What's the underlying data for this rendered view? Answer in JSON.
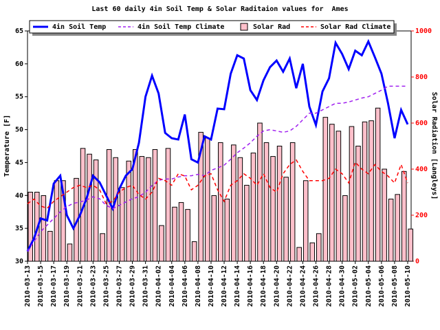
{
  "chart_data": {
    "type": "combo",
    "title": "Last 60 daily 4in Soil Temp & Solar Raditaion values for  Ames",
    "y_label": "Temperature [F]",
    "y2_label": "Solar Radiation [Langleys]",
    "categories": [
      "2010-03-13",
      null,
      "2010-03-15",
      null,
      "2010-03-17",
      null,
      "2010-03-19",
      null,
      "2010-03-21",
      null,
      "2010-03-23",
      null,
      "2010-03-25",
      null,
      "2010-03-27",
      null,
      "2010-03-29",
      null,
      "2010-03-31",
      null,
      "2010-04-02",
      null,
      "2010-04-04",
      null,
      "2010-04-06",
      null,
      "2010-04-08",
      null,
      "2010-04-10",
      null,
      "2010-04-12",
      null,
      "2010-04-14",
      null,
      "2010-04-16",
      null,
      "2010-04-18",
      null,
      "2010-04-20",
      null,
      "2010-04-22",
      null,
      "2010-04-24",
      null,
      "2010-04-26",
      null,
      "2010-04-28",
      null,
      "2010-04-30",
      null,
      "2010-05-02",
      null,
      "2010-05-04",
      null,
      "2010-05-06",
      null,
      "2010-05-08",
      null,
      "2010-05-10"
    ],
    "ylim": [
      30,
      65
    ],
    "yticks": [
      30,
      35,
      40,
      45,
      50,
      55,
      60,
      65
    ],
    "y2lim": [
      0,
      1000
    ],
    "y2ticks": [
      0,
      200,
      400,
      600,
      800,
      1000
    ],
    "y2_color": "#ff0000",
    "series": [
      {
        "name": "4in Soil Temp",
        "type": "line",
        "linestyle": "solid",
        "color": "#0000ff",
        "values": [
          31.5,
          33.5,
          36.5,
          36.2,
          41.8,
          43,
          37,
          35,
          37,
          39.5,
          43,
          42,
          40,
          38,
          41,
          43,
          44,
          48,
          55,
          58.2,
          55.5,
          49.5,
          48.7,
          48.5,
          52.3,
          45.5,
          45,
          49,
          48.5,
          53.2,
          53.1,
          58.5,
          61.3,
          60.8,
          56,
          54.5,
          57.5,
          59.5,
          60.5,
          58.8,
          60.8,
          56.3,
          60,
          53.5,
          50.7,
          55.8,
          57.8,
          63.2,
          61.5,
          59.2,
          62,
          61.3,
          63.4,
          61,
          58.5,
          54,
          48.7,
          53,
          50.8
        ]
      },
      {
        "name": "4in Soil Temp Climate",
        "type": "line",
        "linestyle": "dashed",
        "color": "#a020f0",
        "values": [
          31.5,
          33,
          34.5,
          35.5,
          36.5,
          37.5,
          38.3,
          38.8,
          39,
          39.3,
          39.8,
          39.5,
          38.5,
          38,
          38.5,
          39,
          39.5,
          39.8,
          40.5,
          41.5,
          42.3,
          42.5,
          42.5,
          42.8,
          43,
          43,
          43.2,
          43,
          43.8,
          44.2,
          44.6,
          45.5,
          46.5,
          47.2,
          48,
          49,
          49.8,
          50,
          49.8,
          49.6,
          49.8,
          50.5,
          51.5,
          52.5,
          52.5,
          53,
          53.5,
          54,
          54,
          54.2,
          54.5,
          54.8,
          55,
          55.5,
          56,
          56.6,
          56.6,
          56.6,
          56.6
        ]
      },
      {
        "name": "Solar Rad",
        "type": "bar",
        "axis": "y2",
        "color": "#ffc0cb",
        "values": [
          300,
          300,
          285,
          130,
          350,
          350,
          75,
          360,
          490,
          465,
          440,
          120,
          485,
          450,
          320,
          435,
          485,
          455,
          450,
          485,
          155,
          490,
          235,
          255,
          225,
          85,
          560,
          535,
          285,
          515,
          270,
          505,
          450,
          330,
          470,
          600,
          515,
          455,
          500,
          365,
          515,
          60,
          350,
          80,
          120,
          625,
          595,
          565,
          285,
          585,
          500,
          605,
          610,
          665,
          400,
          270,
          290,
          390,
          140
        ]
      },
      {
        "name": "Solar Rad Climate",
        "type": "line",
        "linestyle": "dashed",
        "axis": "y2",
        "color": "#ff0000",
        "values": [
          250,
          270,
          240,
          230,
          260,
          280,
          300,
          320,
          330,
          320,
          330,
          310,
          250,
          260,
          300,
          320,
          330,
          290,
          270,
          300,
          360,
          350,
          330,
          380,
          370,
          310,
          330,
          370,
          380,
          310,
          260,
          330,
          350,
          380,
          360,
          330,
          380,
          320,
          300,
          380,
          420,
          440,
          390,
          350,
          350,
          350,
          360,
          400,
          380,
          340,
          430,
          400,
          380,
          420,
          390,
          370,
          340,
          420,
          340
        ]
      }
    ]
  }
}
